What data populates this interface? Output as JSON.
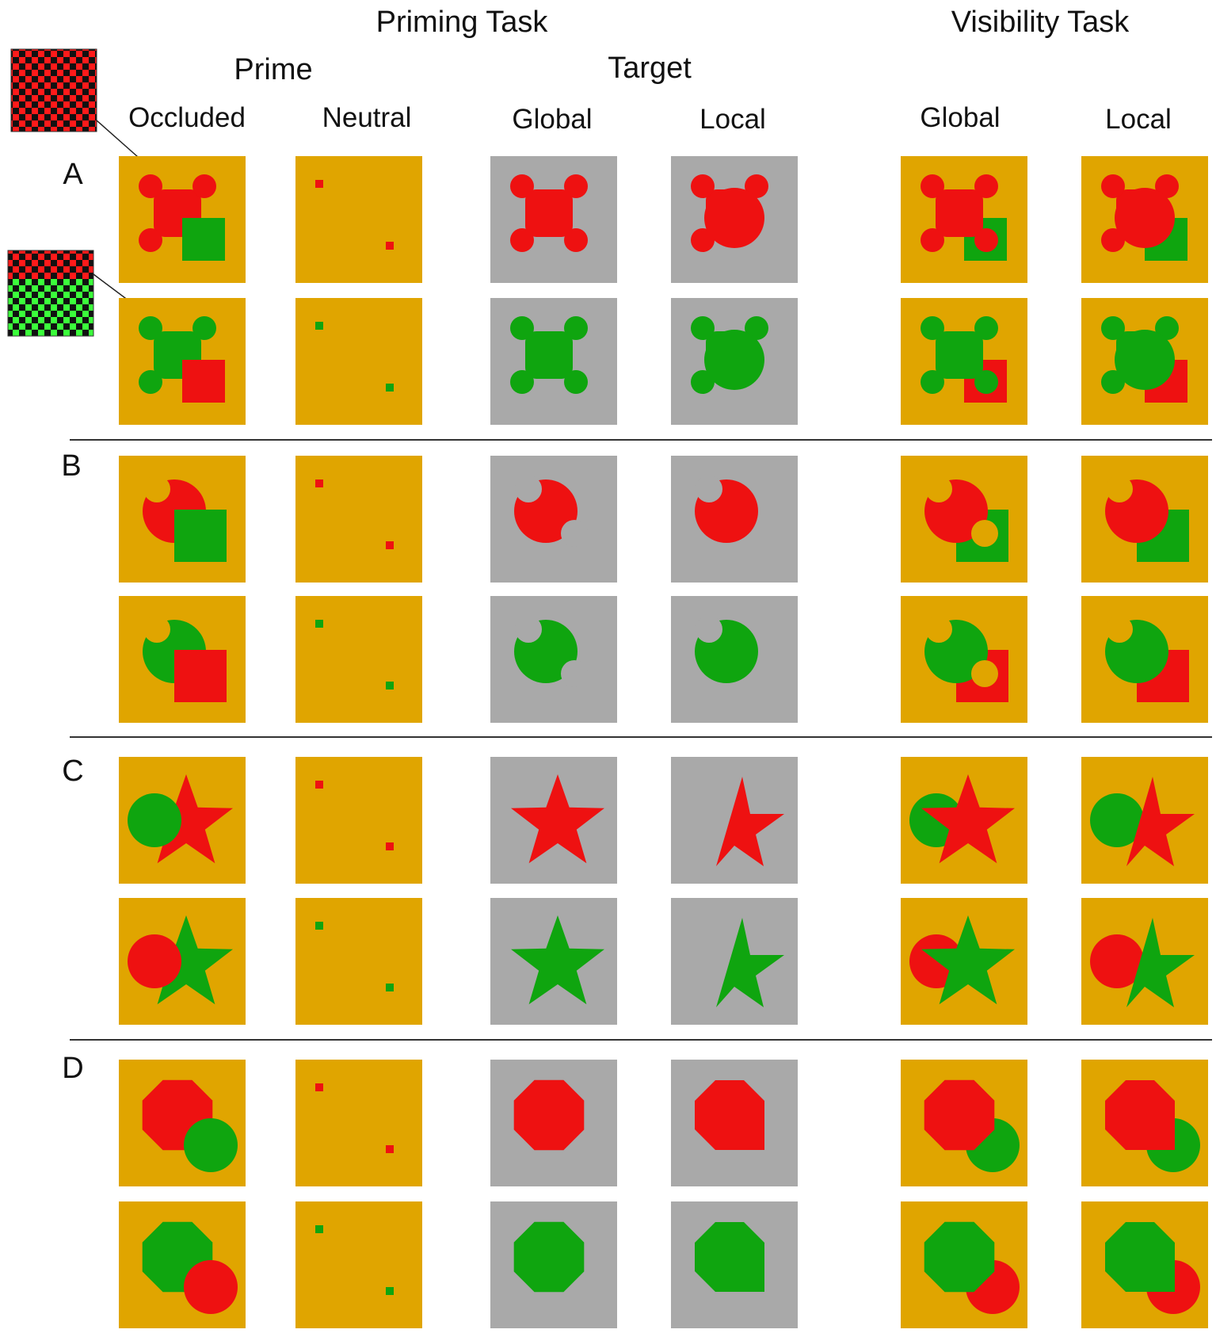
{
  "headers": {
    "priming_task": "Priming Task",
    "visibility_task": "Visibility Task",
    "prime": "Prime",
    "target": "Target",
    "occluded": "Occluded",
    "neutral": "Neutral",
    "target_global": "Global",
    "target_local": "Local",
    "vis_global": "Global",
    "vis_local": "Local"
  },
  "row_labels": [
    "A",
    "B",
    "C",
    "D"
  ],
  "shapes": [
    "clover",
    "pacman",
    "star",
    "octagon"
  ],
  "colors": {
    "orange_bg": "#E0A500",
    "gray_bg": "#A9A9A9",
    "red": "#EE1111",
    "green": "#0FA50F",
    "divider": "#333333",
    "checker_light": "#3BFF3B",
    "checker_dark": "#111111"
  }
}
